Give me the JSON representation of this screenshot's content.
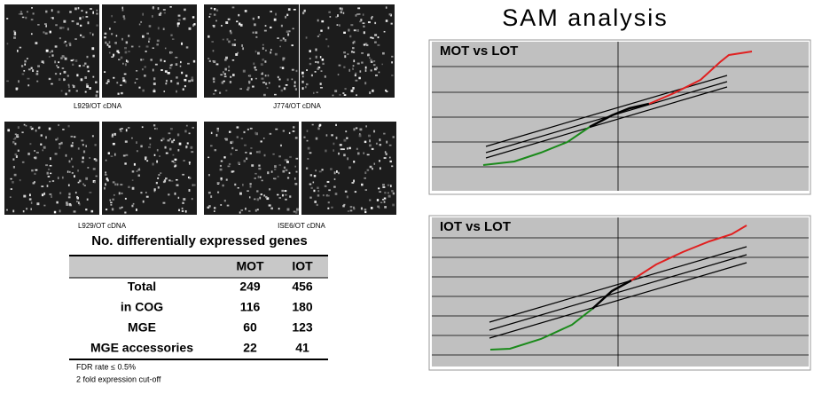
{
  "arrays": {
    "captions": [
      "L929/OT cDNA",
      "J774/OT cDNA",
      "L929/OT cDNA",
      "ISE6/OT cDNA"
    ]
  },
  "table": {
    "title": "No. differentially expressed genes",
    "columns": [
      "MOT",
      "IOT"
    ],
    "rows": [
      {
        "label": "Total",
        "values": [
          249,
          456
        ]
      },
      {
        "label": "in COG",
        "values": [
          116,
          180
        ]
      },
      {
        "label": "MGE",
        "values": [
          60,
          123
        ]
      },
      {
        "label": "MGE accessories",
        "values": [
          22,
          41
        ]
      }
    ],
    "notes": [
      "FDR rate ≤ 0.5%",
      "2 fold expression cut-off"
    ]
  },
  "sam": {
    "title": "SAM analysis",
    "plots": [
      {
        "title": "MOT vs LOT"
      },
      {
        "title": "IOT vs LOT"
      }
    ]
  }
}
